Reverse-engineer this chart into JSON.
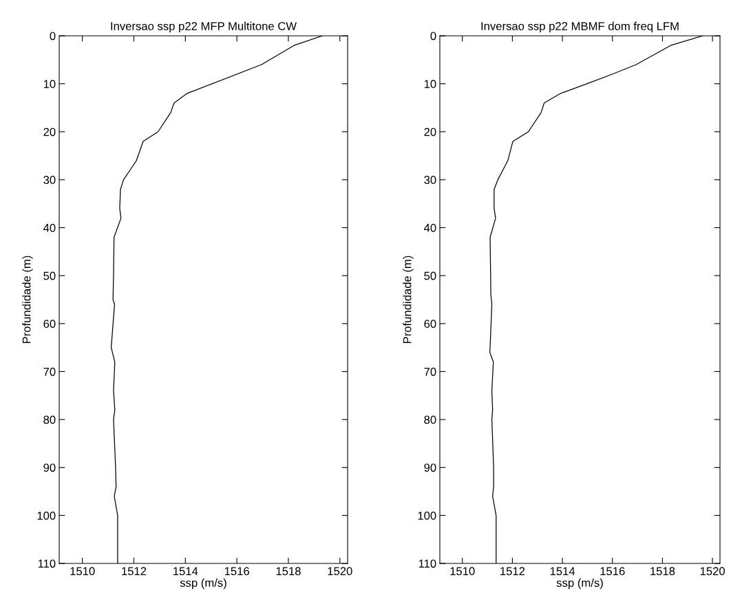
{
  "chart_data": [
    {
      "type": "line",
      "title": "Inversao ssp p22 MFP Multitone CW",
      "xlabel": "ssp (m/s)",
      "ylabel": "Profundidade (m)",
      "series": [
        {
          "color": "#000000",
          "x": [
            1519.32,
            1518.22,
            1516.96,
            1514.07,
            1513.56,
            1513.43,
            1512.94,
            1512.36,
            1512.1,
            1511.85,
            1511.6,
            1511.48,
            1511.45,
            1511.5,
            1511.23,
            1511.21,
            1511.19,
            1511.25,
            1511.12,
            1511.26,
            1511.21,
            1511.26,
            1511.21,
            1511.29,
            1511.31,
            1511.24,
            1511.37,
            1511.37
          ],
          "values": [
            0,
            2,
            6,
            12,
            14,
            16,
            20,
            22,
            26,
            28,
            30,
            32,
            36,
            38,
            42,
            50,
            55,
            56,
            65,
            68,
            74,
            78,
            80,
            90,
            94,
            96,
            100,
            110
          ]
        }
      ],
      "xlim": [
        1509.1,
        1520.3
      ],
      "xticks": [
        1510,
        1512,
        1514,
        1516,
        1518,
        1520
      ],
      "ylim": [
        110,
        0
      ],
      "yticks": [
        0,
        10,
        20,
        30,
        40,
        50,
        60,
        70,
        80,
        90,
        100,
        110
      ],
      "grid": false,
      "legend": false
    },
    {
      "type": "line",
      "title": "Inversao ssp p22 MBMF dom freq LFM",
      "xlabel": "ssp (m/s)",
      "ylabel": "Profundidade (m)",
      "series": [
        {
          "color": "#000000",
          "x": [
            1519.61,
            1518.33,
            1516.95,
            1515.99,
            1514.98,
            1513.93,
            1513.27,
            1513.15,
            1512.64,
            1512.02,
            1511.82,
            1511.42,
            1511.27,
            1511.27,
            1511.33,
            1511.11,
            1511.14,
            1511.18,
            1511.1,
            1511.24,
            1511.18,
            1511.21,
            1511.18,
            1511.25,
            1511.25,
            1511.21,
            1511.35,
            1511.35
          ],
          "values": [
            0,
            2,
            6,
            8,
            10,
            12,
            14,
            16,
            20,
            22,
            26,
            30,
            32,
            36,
            38,
            42,
            54,
            56,
            66,
            68,
            74,
            78,
            80,
            90,
            94,
            96,
            100,
            110
          ]
        }
      ],
      "xlim": [
        1509.1,
        1520.3
      ],
      "xticks": [
        1510,
        1512,
        1514,
        1516,
        1518,
        1520
      ],
      "ylim": [
        110,
        0
      ],
      "yticks": [
        0,
        10,
        20,
        30,
        40,
        50,
        60,
        70,
        80,
        90,
        100,
        110
      ],
      "grid": false,
      "legend": false
    }
  ]
}
